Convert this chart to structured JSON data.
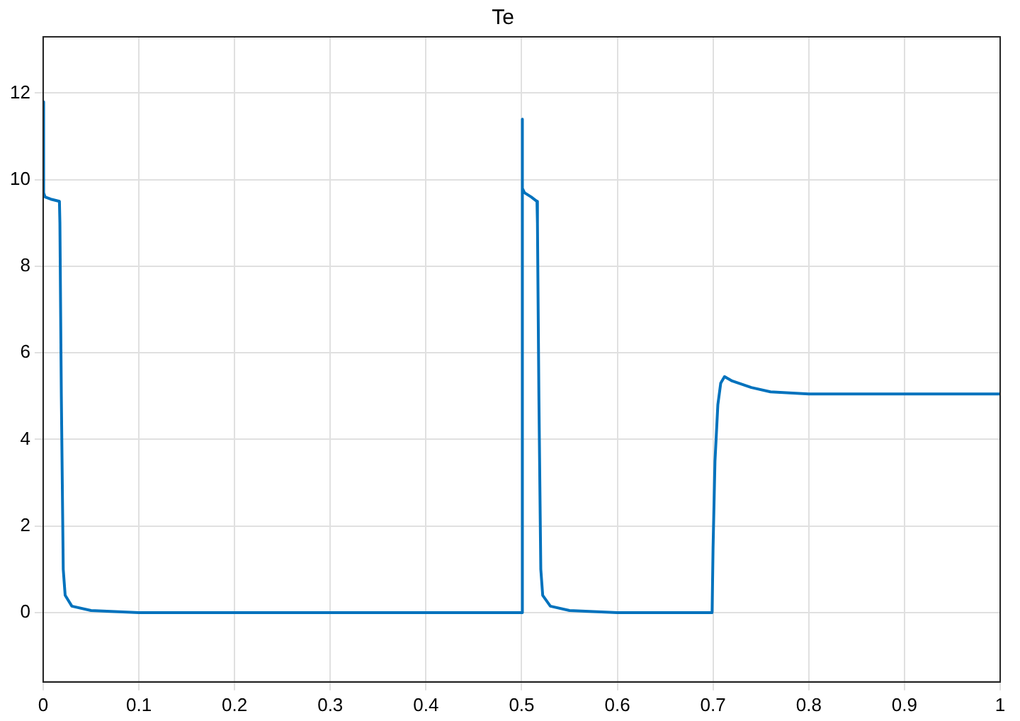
{
  "chart_data": {
    "type": "line",
    "title": "Te",
    "x": [
      0,
      0.0005,
      0.002,
      0.008,
      0.017,
      0.0175,
      0.019,
      0.021,
      0.023,
      0.03,
      0.05,
      0.1,
      0.2,
      0.3,
      0.4,
      0.5,
      0.5005,
      0.501,
      0.503,
      0.51,
      0.516,
      0.5165,
      0.518,
      0.52,
      0.522,
      0.53,
      0.55,
      0.6,
      0.65,
      0.699,
      0.7,
      0.702,
      0.705,
      0.708,
      0.712,
      0.72,
      0.74,
      0.76,
      0.8,
      0.9,
      1
    ],
    "series": [
      {
        "color": "#0072bd",
        "values": [
          11.8,
          9.7,
          9.6,
          9.55,
          9.5,
          9.0,
          5.0,
          1.0,
          0.4,
          0.15,
          0.05,
          0.0,
          0.0,
          0.0,
          0.0,
          0.0,
          11.4,
          9.8,
          9.7,
          9.6,
          9.5,
          9.0,
          5.0,
          1.0,
          0.4,
          0.15,
          0.05,
          0.0,
          0.0,
          0.0,
          1.5,
          3.5,
          4.8,
          5.3,
          5.45,
          5.35,
          5.2,
          5.1,
          5.05,
          5.05,
          5.05
        ]
      }
    ],
    "xlim": [
      0,
      1
    ],
    "xticks": [
      0,
      0.1,
      0.2,
      0.3,
      0.4,
      0.5,
      0.6,
      0.7,
      0.8,
      0.9,
      1
    ],
    "ylim": [
      -1.6,
      13.3
    ],
    "yticks": [
      0,
      2,
      4,
      6,
      8,
      10,
      12
    ],
    "grid": true,
    "marker": "none",
    "line_style": "solid"
  }
}
